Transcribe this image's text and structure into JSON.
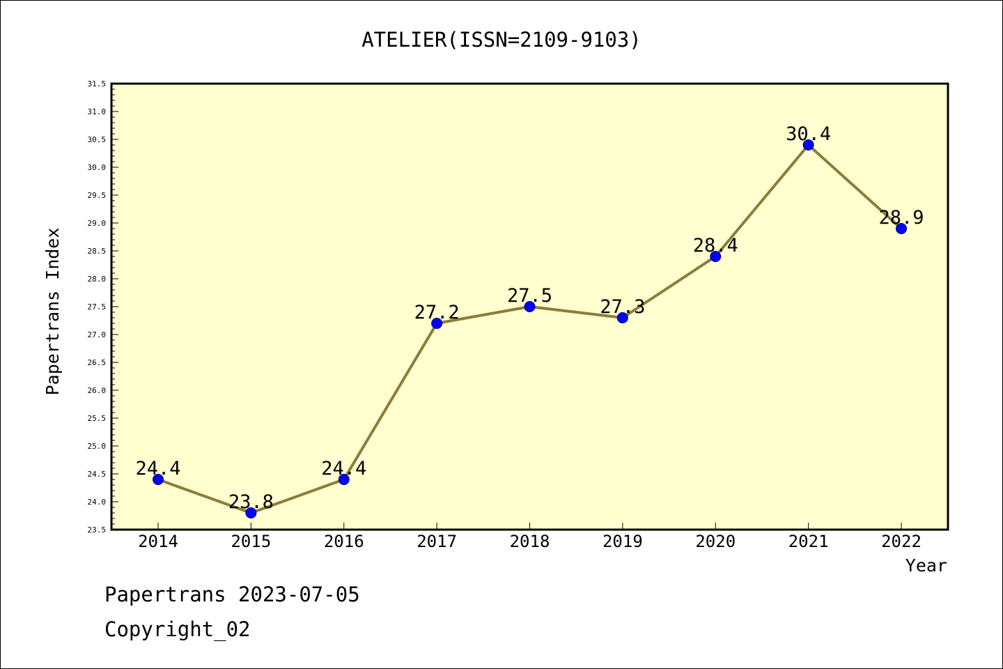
{
  "chart_data": {
    "type": "line",
    "title": "ATELIER(ISSN=2109-9103)",
    "xlabel": "Year",
    "ylabel": "Papertrans Index",
    "x": [
      "2014",
      "2015",
      "2016",
      "2017",
      "2018",
      "2019",
      "2020",
      "2021",
      "2022"
    ],
    "series": [
      {
        "values": [
          24.4,
          23.8,
          24.4,
          27.2,
          27.5,
          27.3,
          28.4,
          30.4,
          28.9
        ],
        "labels": [
          "24.4",
          "23.8",
          "24.4",
          "27.2",
          "27.5",
          "27.3",
          "28.4",
          "30.4",
          "28.9"
        ]
      }
    ],
    "ylim": [
      23.5,
      31.5
    ],
    "yticks": [
      "23.5",
      "24.0",
      "24.5",
      "25.0",
      "25.5",
      "26.0",
      "26.5",
      "27.0",
      "27.5",
      "28.0",
      "28.5",
      "29.0",
      "29.5",
      "30.0",
      "30.5",
      "31.0",
      "31.5"
    ],
    "grid": false,
    "colors": {
      "plot_background": "#ffffd0",
      "line": "#8b7d3a",
      "marker_fill": "#0000ff",
      "marker_edge": "#00008b"
    }
  },
  "footer": {
    "line1": "Papertrans 2023-07-05",
    "line2": "Copyright_02"
  }
}
